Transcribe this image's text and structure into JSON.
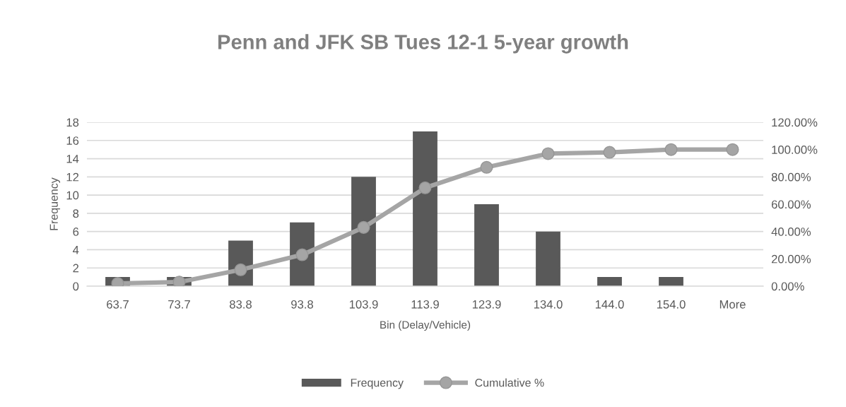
{
  "chart_data": {
    "type": "bar",
    "title": "Penn and JFK SB Tues 12-1 5-year growth",
    "xlabel": "Bin (Delay/Vehicle)",
    "ylabel": "Frequency",
    "categories": [
      "63.7",
      "73.7",
      "83.8",
      "93.8",
      "103.9",
      "113.9",
      "123.9",
      "134.0",
      "144.0",
      "154.0",
      "More"
    ],
    "series": [
      {
        "name": "Frequency",
        "color": "#595959",
        "values": [
          1,
          1,
          5,
          7,
          12,
          17,
          9,
          6,
          1,
          1,
          0
        ]
      },
      {
        "name": "Cumulative %",
        "type": "line",
        "axis": "y2",
        "color": "#a5a5a5",
        "marker": "circle",
        "values": [
          2,
          3,
          12,
          23,
          43,
          72,
          87,
          97,
          98,
          100,
          100
        ]
      }
    ],
    "ylim": [
      0,
      18
    ],
    "yticks": [
      0,
      2,
      4,
      6,
      8,
      10,
      12,
      14,
      16,
      18
    ],
    "y2lim": [
      0,
      120
    ],
    "y2ticks": [
      {
        "value": 0,
        "label": "0.00%"
      },
      {
        "value": 20,
        "label": "20.00%"
      },
      {
        "value": 40,
        "label": "40.00%"
      },
      {
        "value": 60,
        "label": "60.00%"
      },
      {
        "value": 80,
        "label": "80.00%"
      },
      {
        "value": 100,
        "label": "100.00%"
      },
      {
        "value": 120,
        "label": "120.00%"
      }
    ],
    "grid": "y",
    "legend": "bottom"
  }
}
